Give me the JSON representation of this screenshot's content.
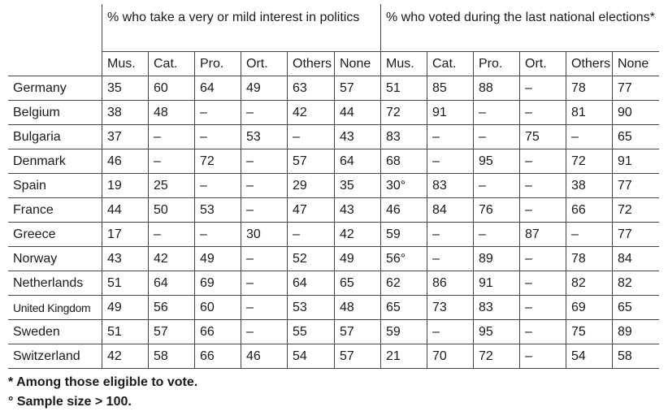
{
  "headers": {
    "group_interest": "% who take a very or mild interest in politics",
    "group_voted": "% who voted during the last national elections*",
    "sub_columns": [
      "Mus.",
      "Cat.",
      "Pro.",
      "Ort.",
      "Others",
      "None"
    ]
  },
  "rows": [
    {
      "country": "Germany",
      "interest": [
        "35",
        "60",
        "64",
        "49",
        "63",
        "57"
      ],
      "voted": [
        "51",
        "85",
        "88",
        "–",
        "78",
        "77"
      ]
    },
    {
      "country": "Belgium",
      "interest": [
        "38",
        "48",
        "–",
        "–",
        "42",
        "44"
      ],
      "voted": [
        "72",
        "91",
        "–",
        "–",
        "81",
        "90"
      ]
    },
    {
      "country": "Bulgaria",
      "interest": [
        "37",
        "–",
        "–",
        "53",
        "–",
        "43"
      ],
      "voted": [
        "83",
        "–",
        "–",
        "75",
        "–",
        "65"
      ]
    },
    {
      "country": "Denmark",
      "interest": [
        "46",
        "–",
        "72",
        "–",
        "57",
        "64"
      ],
      "voted": [
        "68",
        "–",
        "95",
        "–",
        "72",
        "91"
      ]
    },
    {
      "country": "Spain",
      "interest": [
        "19",
        "25",
        "–",
        "–",
        "29",
        "35"
      ],
      "voted": [
        "30°",
        "83",
        "–",
        "–",
        "38",
        "77"
      ]
    },
    {
      "country": "France",
      "interest": [
        "44",
        "50",
        "53",
        "–",
        "47",
        "43"
      ],
      "voted": [
        "46",
        "84",
        "76",
        "–",
        "66",
        "72"
      ]
    },
    {
      "country": "Greece",
      "interest": [
        "17",
        "–",
        "–",
        "30",
        "–",
        "42"
      ],
      "voted": [
        "59",
        "–",
        "–",
        "87",
        "–",
        "77"
      ]
    },
    {
      "country": "Norway",
      "interest": [
        "43",
        "42",
        "49",
        "–",
        "52",
        "49"
      ],
      "voted": [
        "56°",
        "–",
        "89",
        "–",
        "78",
        "84"
      ]
    },
    {
      "country": "Netherlands",
      "interest": [
        "51",
        "64",
        "69",
        "–",
        "64",
        "65"
      ],
      "voted": [
        "62",
        "86",
        "91",
        "–",
        "82",
        "82"
      ]
    },
    {
      "country": "United Kingdom",
      "interest": [
        "49",
        "56",
        "60",
        "–",
        "53",
        "48"
      ],
      "voted": [
        "65",
        "73",
        "83",
        "–",
        "69",
        "65"
      ]
    },
    {
      "country": "Sweden",
      "interest": [
        "51",
        "57",
        "66",
        "–",
        "55",
        "57"
      ],
      "voted": [
        "59",
        "–",
        "95",
        "–",
        "75",
        "89"
      ]
    },
    {
      "country": "Switzerland",
      "interest": [
        "42",
        "58",
        "66",
        "46",
        "54",
        "57"
      ],
      "voted": [
        "21",
        "70",
        "72",
        "–",
        "54",
        "58"
      ]
    }
  ],
  "footnotes": [
    "* Among those eligible to vote.",
    "° Sample size > 100."
  ]
}
